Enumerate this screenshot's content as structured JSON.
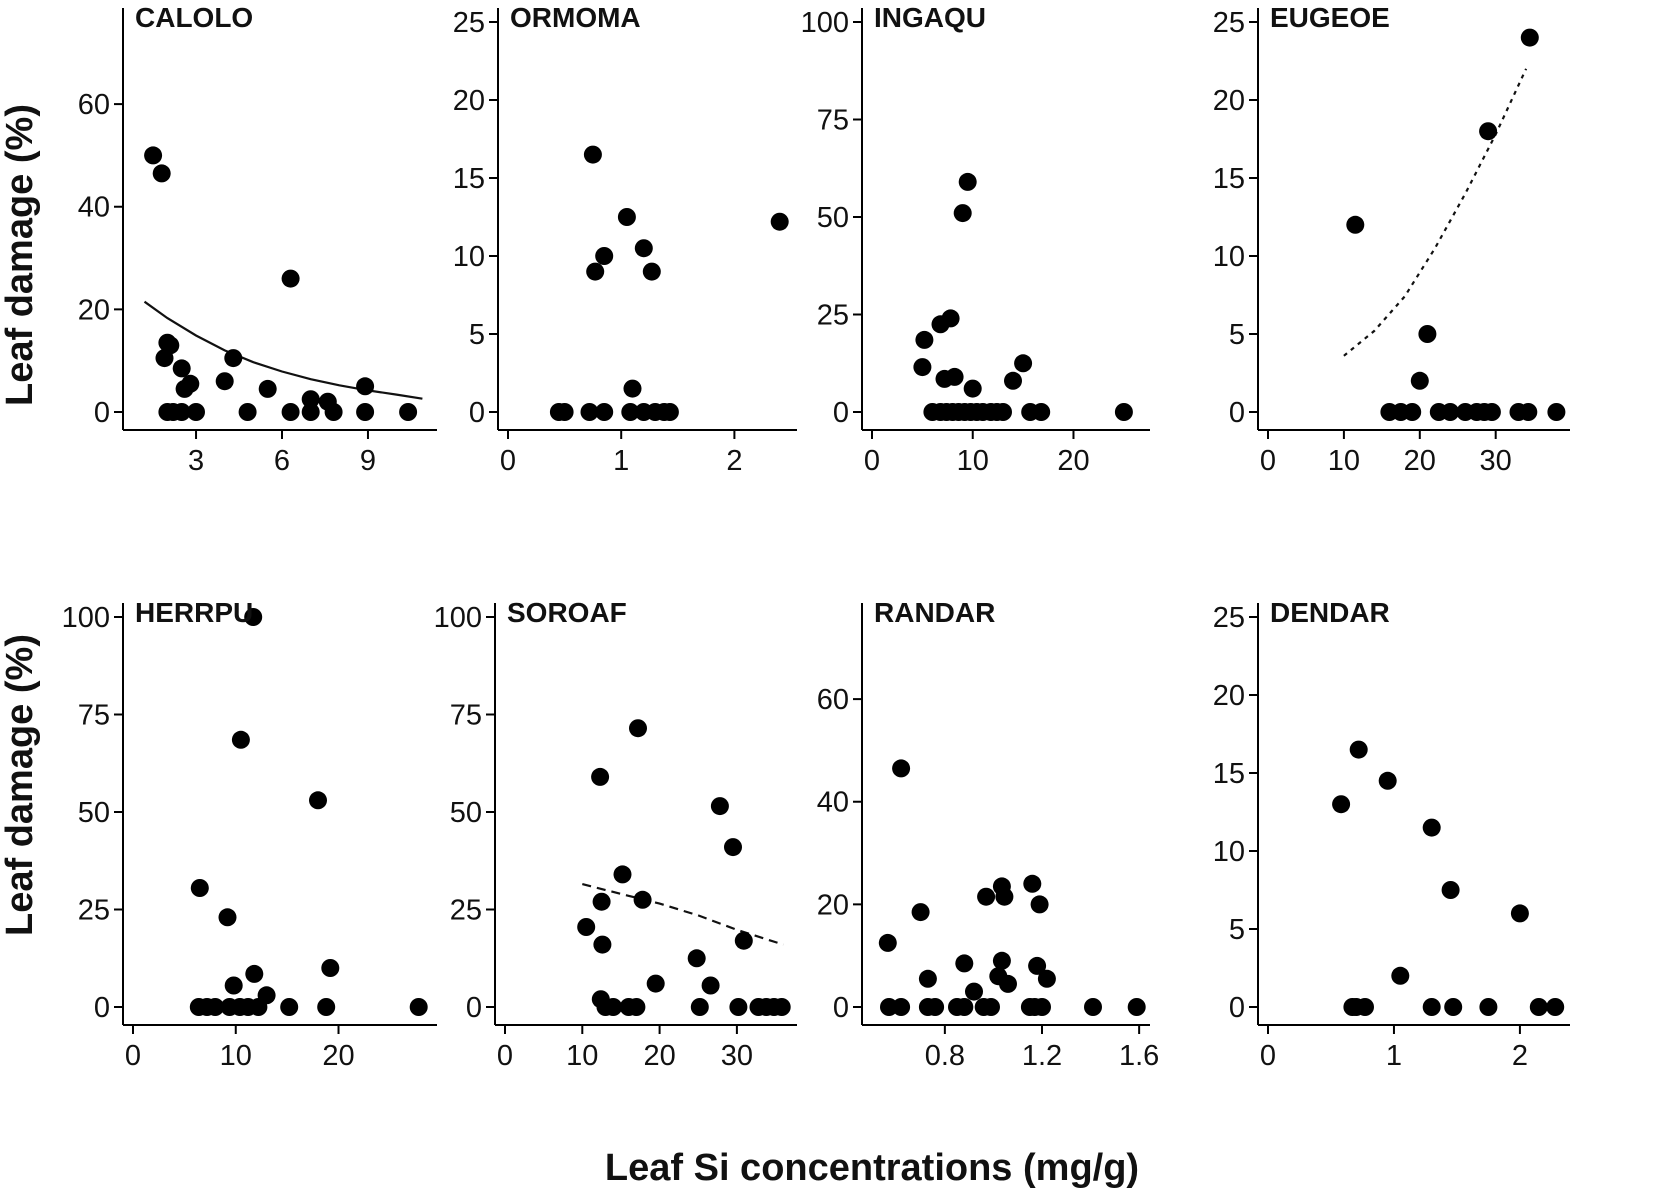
{
  "figure": {
    "ylabel": "Leaf damage (%)",
    "xlabel": "Leaf Si concentrations (mg/g)"
  },
  "chart_data": [
    {
      "type": "scatter",
      "title": "CALOLO",
      "xlim": [
        0.8,
        11.2
      ],
      "ylim": [
        0,
        76
      ],
      "xticks": [
        3,
        6,
        9
      ],
      "xtick_labels": [
        "3",
        "6",
        "9"
      ],
      "yticks": [
        0,
        20,
        40,
        60
      ],
      "ytick_labels": [
        "0",
        "20",
        "40",
        "60"
      ],
      "points": [
        [
          1.5,
          50
        ],
        [
          1.8,
          46.5
        ],
        [
          2.0,
          13.5
        ],
        [
          2.1,
          13
        ],
        [
          1.9,
          10.5
        ],
        [
          2.5,
          8.5
        ],
        [
          2.8,
          5.5
        ],
        [
          2.6,
          4.5
        ],
        [
          2.0,
          0
        ],
        [
          2.2,
          0
        ],
        [
          2.5,
          0
        ],
        [
          3.0,
          0
        ],
        [
          4.0,
          6
        ],
        [
          4.3,
          10.5
        ],
        [
          4.8,
          0
        ],
        [
          5.5,
          4.5
        ],
        [
          6.3,
          26
        ],
        [
          6.3,
          0
        ],
        [
          7.0,
          2.5
        ],
        [
          7.0,
          0
        ],
        [
          7.6,
          2
        ],
        [
          7.8,
          0
        ],
        [
          8.9,
          5
        ],
        [
          8.9,
          0
        ],
        [
          10.4,
          0
        ]
      ],
      "fit": {
        "style": "solid",
        "points": [
          [
            1.2,
            21.5
          ],
          [
            2,
            18.3
          ],
          [
            3,
            14.9
          ],
          [
            4,
            12
          ],
          [
            5,
            9.7
          ],
          [
            6,
            7.9
          ],
          [
            7,
            6.4
          ],
          [
            8,
            5.2
          ],
          [
            9,
            4.2
          ],
          [
            10,
            3.4
          ],
          [
            10.9,
            2.6
          ]
        ]
      }
    },
    {
      "type": "scatter",
      "title": "ORMOMA",
      "xlim": [
        0,
        2.5
      ],
      "ylim": [
        0,
        25
      ],
      "xticks": [
        0,
        1,
        2
      ],
      "xtick_labels": [
        "0",
        "1",
        "2"
      ],
      "yticks": [
        0,
        5,
        10,
        15,
        20,
        25
      ],
      "ytick_labels": [
        "0",
        "5",
        "10",
        "15",
        "20",
        "25"
      ],
      "points": [
        [
          0.45,
          0
        ],
        [
          0.5,
          0
        ],
        [
          0.72,
          0
        ],
        [
          0.85,
          0
        ],
        [
          0.75,
          16.5
        ],
        [
          0.77,
          9
        ],
        [
          0.85,
          10
        ],
        [
          1.05,
          12.5
        ],
        [
          1.1,
          1.5
        ],
        [
          1.08,
          0
        ],
        [
          1.2,
          10.5
        ],
        [
          1.27,
          9
        ],
        [
          1.2,
          0
        ],
        [
          1.3,
          0
        ],
        [
          1.38,
          0
        ],
        [
          1.43,
          0
        ],
        [
          2.4,
          12.2
        ]
      ],
      "fit": null
    },
    {
      "type": "scatter",
      "title": "INGAQU",
      "xlim": [
        0,
        27
      ],
      "ylim": [
        0,
        100
      ],
      "xticks": [
        0,
        10,
        20
      ],
      "xtick_labels": [
        "0",
        "10",
        "20"
      ],
      "yticks": [
        0,
        25,
        50,
        75,
        100
      ],
      "ytick_labels": [
        "0",
        "25",
        "50",
        "75",
        "100"
      ],
      "points": [
        [
          5,
          11.5
        ],
        [
          5.2,
          18.5
        ],
        [
          6.8,
          22.5
        ],
        [
          7.2,
          8.5
        ],
        [
          7.8,
          24
        ],
        [
          8.2,
          9
        ],
        [
          9.0,
          51
        ],
        [
          9.5,
          59
        ],
        [
          10.0,
          6
        ],
        [
          6,
          0
        ],
        [
          6.8,
          0
        ],
        [
          7.4,
          0
        ],
        [
          8.0,
          0
        ],
        [
          8.6,
          0
        ],
        [
          9.2,
          0
        ],
        [
          9.8,
          0
        ],
        [
          10.4,
          0
        ],
        [
          11.0,
          0
        ],
        [
          11.8,
          0
        ],
        [
          12.4,
          0
        ],
        [
          13.0,
          0
        ],
        [
          14.0,
          8
        ],
        [
          15.0,
          12.5
        ],
        [
          15.7,
          0
        ],
        [
          16.8,
          0
        ],
        [
          25,
          0
        ]
      ],
      "fit": null
    },
    {
      "type": "scatter",
      "title": "EUGEOE",
      "xlim": [
        0,
        39
      ],
      "ylim": [
        0,
        25
      ],
      "xticks": [
        0,
        10,
        20,
        30
      ],
      "xtick_labels": [
        "0",
        "10",
        "20",
        "30"
      ],
      "yticks": [
        0,
        5,
        10,
        15,
        20,
        25
      ],
      "ytick_labels": [
        "0",
        "5",
        "10",
        "15",
        "20",
        "25"
      ],
      "points": [
        [
          11.5,
          12
        ],
        [
          16,
          0
        ],
        [
          17.5,
          0
        ],
        [
          19,
          0
        ],
        [
          20,
          2
        ],
        [
          21,
          5
        ],
        [
          22.5,
          0
        ],
        [
          24,
          0
        ],
        [
          26,
          0
        ],
        [
          27.5,
          0
        ],
        [
          28.5,
          0
        ],
        [
          29,
          18
        ],
        [
          29.5,
          0
        ],
        [
          33,
          0
        ],
        [
          34.5,
          24
        ],
        [
          34.3,
          0
        ],
        [
          38,
          0
        ]
      ],
      "fit": {
        "style": "dashed",
        "points": [
          [
            10,
            3.6
          ],
          [
            14,
            5.2
          ],
          [
            18,
            7.4
          ],
          [
            22,
            10.5
          ],
          [
            26,
            14
          ],
          [
            30,
            17.8
          ],
          [
            34,
            22
          ]
        ]
      }
    },
    {
      "type": "scatter",
      "title": "HERRPU",
      "xlim": [
        0,
        29
      ],
      "ylim": [
        0,
        100
      ],
      "xticks": [
        0,
        10,
        20
      ],
      "xtick_labels": [
        "0",
        "10",
        "20"
      ],
      "yticks": [
        0,
        25,
        50,
        75,
        100
      ],
      "ytick_labels": [
        "0",
        "25",
        "50",
        "75",
        "100"
      ],
      "points": [
        [
          6.5,
          30.5
        ],
        [
          9.2,
          23
        ],
        [
          9.8,
          5.5
        ],
        [
          10.5,
          68.5
        ],
        [
          11.7,
          100
        ],
        [
          11.8,
          8.5
        ],
        [
          13,
          3
        ],
        [
          18,
          53
        ],
        [
          19.2,
          10
        ],
        [
          6.4,
          0
        ],
        [
          7.2,
          0
        ],
        [
          8.0,
          0
        ],
        [
          9.4,
          0
        ],
        [
          10.4,
          0
        ],
        [
          11.2,
          0
        ],
        [
          12.2,
          0
        ],
        [
          15.2,
          0
        ],
        [
          18.8,
          0
        ],
        [
          27.8,
          0
        ]
      ],
      "fit": null
    },
    {
      "type": "scatter",
      "title": "SOROAF",
      "xlim": [
        0,
        37
      ],
      "ylim": [
        0,
        100
      ],
      "xticks": [
        0,
        10,
        20,
        30
      ],
      "xtick_labels": [
        "0",
        "10",
        "20",
        "30"
      ],
      "yticks": [
        0,
        25,
        50,
        75,
        100
      ],
      "ytick_labels": [
        "0",
        "25",
        "50",
        "75",
        "100"
      ],
      "points": [
        [
          10.5,
          20.5
        ],
        [
          12.3,
          59
        ],
        [
          12.5,
          27
        ],
        [
          12.6,
          16
        ],
        [
          12.4,
          2
        ],
        [
          13,
          0
        ],
        [
          14,
          0
        ],
        [
          15.2,
          34
        ],
        [
          16,
          0
        ],
        [
          17,
          0
        ],
        [
          17.2,
          71.5
        ],
        [
          17.8,
          27.5
        ],
        [
          19.5,
          6
        ],
        [
          24.8,
          12.5
        ],
        [
          25.2,
          0
        ],
        [
          26.6,
          5.5
        ],
        [
          27.8,
          51.5
        ],
        [
          29.5,
          41
        ],
        [
          30.2,
          0
        ],
        [
          30.9,
          17
        ],
        [
          32.8,
          0
        ],
        [
          33.8,
          0
        ],
        [
          34.8,
          0
        ],
        [
          35.8,
          0
        ]
      ],
      "fit": {
        "style": "dashed",
        "points": [
          [
            10,
            31.5
          ],
          [
            15,
            29
          ],
          [
            20,
            26.5
          ],
          [
            25,
            23.5
          ],
          [
            30,
            19.8
          ],
          [
            36,
            16
          ]
        ]
      }
    },
    {
      "type": "scatter",
      "title": "RANDAR",
      "xlim": [
        0.5,
        1.62
      ],
      "ylim": [
        0,
        76
      ],
      "xticks": [
        0.8,
        1.2,
        1.6
      ],
      "xtick_labels": [
        "0.8",
        "1.2",
        "1.6"
      ],
      "yticks": [
        0,
        20,
        40,
        60
      ],
      "ytick_labels": [
        "0",
        "20",
        "40",
        "60"
      ],
      "points": [
        [
          0.565,
          12.5
        ],
        [
          0.57,
          0
        ],
        [
          0.62,
          46.5
        ],
        [
          0.62,
          0
        ],
        [
          0.7,
          18.5
        ],
        [
          0.73,
          5.5
        ],
        [
          0.73,
          0
        ],
        [
          0.76,
          0
        ],
        [
          0.85,
          0
        ],
        [
          0.88,
          8.5
        ],
        [
          0.88,
          0
        ],
        [
          0.92,
          3
        ],
        [
          0.96,
          0
        ],
        [
          0.97,
          21.5
        ],
        [
          0.99,
          0
        ],
        [
          1.02,
          6
        ],
        [
          1.035,
          9
        ],
        [
          1.035,
          23.5
        ],
        [
          1.045,
          21.5
        ],
        [
          1.06,
          4.5
        ],
        [
          1.15,
          0
        ],
        [
          1.16,
          24
        ],
        [
          1.18,
          8
        ],
        [
          1.19,
          20
        ],
        [
          1.17,
          0
        ],
        [
          1.2,
          0
        ],
        [
          1.22,
          5.5
        ],
        [
          1.41,
          0
        ],
        [
          1.59,
          0
        ]
      ],
      "fit": null
    },
    {
      "type": "scatter",
      "title": "DENDAR",
      "xlim": [
        0,
        2.35
      ],
      "ylim": [
        0,
        25
      ],
      "xticks": [
        0,
        1,
        2
      ],
      "xtick_labels": [
        "0",
        "1",
        "2"
      ],
      "yticks": [
        0,
        5,
        10,
        15,
        20,
        25
      ],
      "ytick_labels": [
        "0",
        "5",
        "10",
        "15",
        "20",
        "25"
      ],
      "points": [
        [
          0.58,
          13
        ],
        [
          0.67,
          0
        ],
        [
          0.72,
          16.5
        ],
        [
          0.7,
          0
        ],
        [
          0.77,
          0
        ],
        [
          0.95,
          14.5
        ],
        [
          1.05,
          2
        ],
        [
          1.3,
          11.5
        ],
        [
          1.3,
          0
        ],
        [
          1.45,
          7.5
        ],
        [
          1.47,
          0
        ],
        [
          1.75,
          0
        ],
        [
          2.0,
          6
        ],
        [
          2.15,
          0
        ],
        [
          2.28,
          0
        ]
      ],
      "fit": null
    }
  ]
}
